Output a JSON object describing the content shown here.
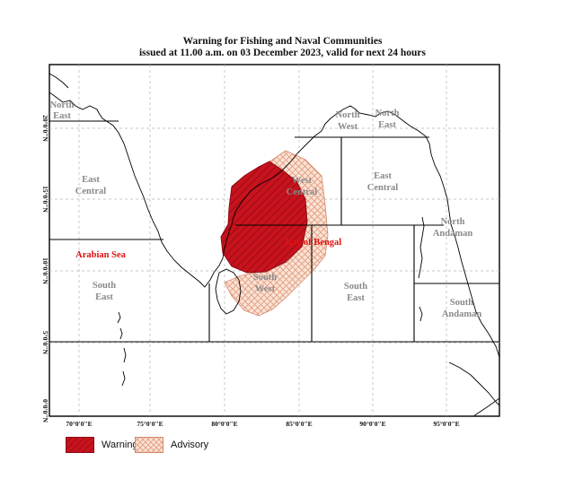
{
  "title_line1": "Warning for Fishing and Naval Communities",
  "title_line2": "issued at 11.00 a.m.  on 03 December 2023, valid for next 24 hours",
  "colors": {
    "warning": "#c8131e",
    "advisory_fill": "#fbe3d6",
    "advisory_hatch": "#e09a7a",
    "region_label": "#8a8a8a",
    "sea_label": "#e01010"
  },
  "axes": {
    "x_ticks": [
      "70°0'0\"E",
      "75°0'0\"E",
      "80°0'0\"E",
      "85°0'0\"E",
      "90°0'0\"E",
      "95°0'0\"E"
    ],
    "y_ticks": [
      "20°0'0\"N",
      "15°0'0\"N",
      "10°0'0\"N",
      "5°0'0\"N",
      "0°0'0\"N"
    ]
  },
  "regions": {
    "north_east_arabian": [
      "North",
      "East"
    ],
    "east_central_arabian": [
      "East",
      "Central"
    ],
    "south_east_arabian": [
      "South",
      "East"
    ],
    "north_west_bay": [
      "North",
      "West"
    ],
    "north_east_bay": [
      "North",
      "East"
    ],
    "west_central_bay": [
      "West",
      "Central"
    ],
    "east_central_bay": [
      "East",
      "Central"
    ],
    "south_west_bay": [
      "South",
      "West"
    ],
    "south_east_bay": [
      "South",
      "East"
    ],
    "north_andaman": [
      "North",
      "Andaman"
    ],
    "south_andaman": [
      "South",
      "Andaman"
    ]
  },
  "seas": {
    "arabian_sea": "Arabian Sea",
    "bay_of_bengal": "Bay of Bengal"
  },
  "legend": {
    "warning": "Warning",
    "advisory": "Advisory"
  }
}
